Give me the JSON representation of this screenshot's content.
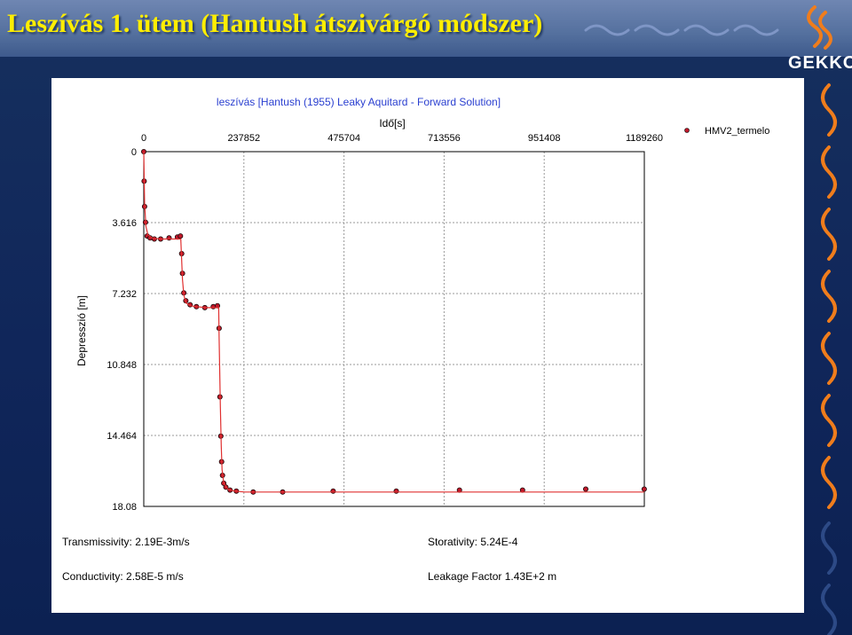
{
  "slide": {
    "title": "Leszívás 1. ütem (Hantush átszivárgó módszer)",
    "logo_text": "GEKKO"
  },
  "params": {
    "transmissivity": "Transmissivity: 2.19E-3m/s",
    "storativity": "Storativity: 5.24E-4",
    "conductivity": "Conductivity: 2.58E-5 m/s",
    "leakage": "Leakage Factor 1.43E+2 m"
  },
  "colors": {
    "header_bg": "#5f78a8",
    "slide_bg": "#12295a",
    "title_color": "#ffee00",
    "chart_title_color": "#2a3fd0",
    "series_marker": "#c0182a",
    "fit_line": "#e03030"
  },
  "chart_data": {
    "type": "scatter",
    "title": "leszívás [Hantush (1955) Leaky Aquitard - Forward Solution]",
    "xlabel": "Idő[s]",
    "ylabel": "Depresszió [m]",
    "x_axis_position": "top",
    "y_axis_inverted": true,
    "xlim": [
      0,
      1189260
    ],
    "ylim": [
      0,
      18.08
    ],
    "x_ticks": [
      "0",
      "237852",
      "475704",
      "713556",
      "951408",
      "1189260"
    ],
    "y_ticks": [
      "0",
      "3.616",
      "7.232",
      "10.848",
      "14.464",
      "18.08"
    ],
    "grid": true,
    "legend_position": "top-right",
    "series": [
      {
        "name": "HMV2_termelo",
        "marker": "circle",
        "points_x": [
          0,
          800,
          2000,
          4000,
          8000,
          15000,
          25000,
          40000,
          60000,
          80000,
          87000,
          90000,
          92000,
          95000,
          100000,
          110000,
          125000,
          145000,
          165000,
          175000,
          179000,
          181000,
          183000,
          185000,
          187000,
          190000,
          195000,
          205000,
          220000,
          260000,
          330000,
          450000,
          600000,
          750000,
          900000,
          1050000,
          1189000
        ],
        "points_y": [
          0,
          1.5,
          2.8,
          3.6,
          4.3,
          4.4,
          4.45,
          4.45,
          4.4,
          4.35,
          4.3,
          5.2,
          6.2,
          7.2,
          7.6,
          7.8,
          7.9,
          7.95,
          7.9,
          7.85,
          9.0,
          12.5,
          14.5,
          15.8,
          16.5,
          16.9,
          17.1,
          17.25,
          17.3,
          17.35,
          17.35,
          17.3,
          17.3,
          17.25,
          17.25,
          17.2,
          17.2
        ]
      }
    ],
    "fit_line": {
      "x": [
        0,
        2000,
        5000,
        10000,
        20000,
        40000,
        60000,
        88000,
        89000,
        92000,
        95000,
        100000,
        110000,
        125000,
        150000,
        178000,
        179000,
        182000,
        184000,
        186000,
        190000,
        200000,
        215000,
        240000,
        300000,
        450000,
        700000,
        1189000
      ],
      "y": [
        0,
        2.6,
        3.8,
        4.25,
        4.4,
        4.45,
        4.45,
        4.45,
        5.0,
        6.5,
        7.3,
        7.7,
        7.85,
        7.9,
        7.95,
        7.95,
        9.5,
        13.0,
        15.0,
        16.2,
        16.9,
        17.2,
        17.3,
        17.35,
        17.35,
        17.35,
        17.35,
        17.35
      ]
    }
  }
}
